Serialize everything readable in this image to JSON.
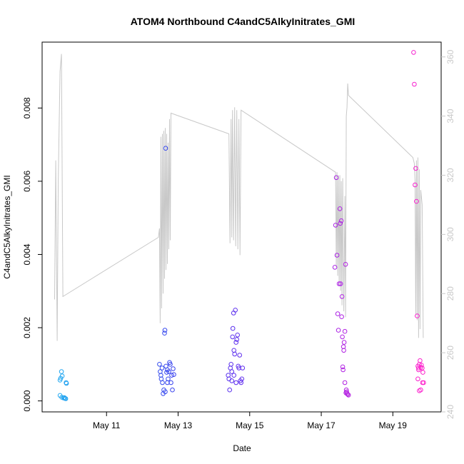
{
  "chart_data": {
    "type": "scatter",
    "title": "ATOM4 Northbound C4andC5AlkyInitrates_GMI",
    "xlabel": "Date",
    "ylabel": "C4andC5AlkyInitrates_GMI",
    "x_ticks": [
      "May 11",
      "May 13",
      "May 15",
      "May 17",
      "May 19"
    ],
    "x_tick_days": [
      11,
      13,
      15,
      17,
      19
    ],
    "xlim_days": [
      9.2,
      20.35
    ],
    "ylim": [
      -0.0003,
      0.0098
    ],
    "y_ticks": [
      0.0,
      0.002,
      0.004,
      0.006,
      0.008
    ],
    "y_tick_labels": [
      "0.000",
      "0.002",
      "0.004",
      "0.006",
      "0.008"
    ],
    "y2_ticks": [
      240,
      260,
      280,
      300,
      320,
      340,
      360
    ],
    "y2_lim": [
      240,
      365
    ],
    "y2_color": "#c8c8c8",
    "grid": false,
    "legend": "none",
    "color_gradient": [
      "#22a8f0",
      "#3a3aee",
      "#8822ee",
      "#ff22cc"
    ],
    "series": [
      {
        "points": [
          [
            9.7,
            0.00057
          ],
          [
            9.72,
            0.00062
          ],
          [
            9.74,
            0.0008
          ],
          [
            9.76,
            0.00068
          ],
          [
            9.87,
            0.0005
          ],
          [
            9.88,
            0.00048
          ],
          [
            9.7,
            0.00015
          ],
          [
            9.75,
            0.0001
          ],
          [
            9.8,
            8e-05
          ],
          [
            9.84,
            7e-05
          ],
          [
            9.86,
            6e-05
          ],
          [
            9.82,
            9e-05
          ],
          [
            12.48,
            0.001
          ],
          [
            12.5,
            0.0008
          ],
          [
            12.52,
            0.0007
          ],
          [
            12.53,
            0.0006
          ],
          [
            12.55,
            0.0009
          ],
          [
            12.56,
            0.0005
          ],
          [
            12.58,
            0.0002
          ],
          [
            12.6,
            0.0003
          ],
          [
            12.62,
            0.00185
          ],
          [
            12.63,
            0.00193
          ],
          [
            12.65,
            0.0069
          ],
          [
            12.66,
            0.00095
          ],
          [
            12.68,
            0.00078
          ],
          [
            12.7,
            0.00085
          ],
          [
            12.72,
            0.0006
          ],
          [
            12.74,
            0.0008
          ],
          [
            12.76,
            0.00105
          ],
          [
            12.78,
            0.001
          ],
          [
            12.8,
            0.0005
          ],
          [
            12.82,
            0.0007
          ],
          [
            12.84,
            0.0003
          ],
          [
            12.86,
            0.00088
          ],
          [
            12.88,
            0.00072
          ],
          [
            12.64,
            0.00025
          ],
          [
            12.7,
            0.0005
          ],
          [
            14.4,
            0.0007
          ],
          [
            14.42,
            0.0006
          ],
          [
            14.44,
            0.0003
          ],
          [
            14.46,
            0.0009
          ],
          [
            14.48,
            0.001
          ],
          [
            14.5,
            0.0008
          ],
          [
            14.52,
            0.00175
          ],
          [
            14.53,
            0.00198
          ],
          [
            14.55,
            0.0024
          ],
          [
            14.56,
            0.00138
          ],
          [
            14.58,
            0.00128
          ],
          [
            14.6,
            0.00248
          ],
          [
            14.62,
            0.0016
          ],
          [
            14.64,
            0.00168
          ],
          [
            14.66,
            0.0018
          ],
          [
            14.68,
            0.00095
          ],
          [
            14.7,
            0.0009
          ],
          [
            14.72,
            0.00125
          ],
          [
            14.74,
            0.00055
          ],
          [
            14.76,
            0.0005
          ],
          [
            14.78,
            0.0006
          ],
          [
            14.8,
            0.0009
          ],
          [
            14.5,
            0.00055
          ],
          [
            14.56,
            0.0007
          ],
          [
            14.62,
            0.0005
          ],
          [
            17.38,
            0.00365
          ],
          [
            17.4,
            0.0048
          ],
          [
            17.42,
            0.0061
          ],
          [
            17.44,
            0.00398
          ],
          [
            17.46,
            0.00238
          ],
          [
            17.48,
            0.00193
          ],
          [
            17.5,
            0.0032
          ],
          [
            17.52,
            0.00525
          ],
          [
            17.53,
            0.00485
          ],
          [
            17.54,
            0.0032
          ],
          [
            17.56,
            0.00492
          ],
          [
            17.57,
            0.0023
          ],
          [
            17.58,
            0.00285
          ],
          [
            17.59,
            0.00175
          ],
          [
            17.6,
            0.00093
          ],
          [
            17.61,
            0.00085
          ],
          [
            17.62,
            0.00148
          ],
          [
            17.63,
            0.00138
          ],
          [
            17.64,
            0.0016
          ],
          [
            17.66,
            0.0019
          ],
          [
            17.68,
            0.00373
          ],
          [
            17.7,
            0.0003
          ],
          [
            17.72,
            0.0002
          ],
          [
            17.74,
            0.00018
          ],
          [
            17.76,
            0.00016
          ],
          [
            17.66,
            0.0005
          ],
          [
            17.69,
            0.00022
          ],
          [
            17.71,
            0.00025
          ],
          [
            19.58,
            0.00952
          ],
          [
            19.6,
            0.00865
          ],
          [
            19.62,
            0.0059
          ],
          [
            19.64,
            0.00635
          ],
          [
            19.66,
            0.00545
          ],
          [
            19.68,
            0.00232
          ],
          [
            19.7,
            0.00095
          ],
          [
            19.72,
            0.0009
          ],
          [
            19.74,
            0.001
          ],
          [
            19.76,
            0.0011
          ],
          [
            19.78,
            0.00092
          ],
          [
            19.8,
            0.00098
          ],
          [
            19.82,
            0.0009
          ],
          [
            19.84,
            0.00078
          ],
          [
            19.86,
            0.0005
          ],
          [
            19.7,
            0.0006
          ],
          [
            19.74,
            0.00028
          ],
          [
            19.78,
            0.0003
          ],
          [
            19.83,
            0.0005
          ],
          [
            19.72,
            0.00085
          ]
        ]
      },
      {
        "y_axis": "right",
        "color": "#c8c8c8",
        "type": "line",
        "points": [
          [
            9.55,
            278
          ],
          [
            9.58,
            325
          ],
          [
            9.62,
            264
          ],
          [
            9.65,
            318
          ],
          [
            9.7,
            355
          ],
          [
            9.74,
            361
          ],
          [
            9.78,
            279
          ],
          [
            12.45,
            299
          ],
          [
            12.48,
            302
          ],
          [
            12.5,
            270
          ],
          [
            12.52,
            333
          ],
          [
            12.54,
            275
          ],
          [
            12.56,
            334
          ],
          [
            12.58,
            280
          ],
          [
            12.6,
            335
          ],
          [
            12.62,
            285
          ],
          [
            12.64,
            336
          ],
          [
            12.66,
            288
          ],
          [
            12.68,
            334
          ],
          [
            12.7,
            290
          ],
          [
            12.72,
            331
          ],
          [
            12.74,
            295
          ],
          [
            12.76,
            339
          ],
          [
            12.78,
            298
          ],
          [
            12.8,
            341
          ],
          [
            14.42,
            334
          ],
          [
            14.45,
            297
          ],
          [
            14.48,
            339
          ],
          [
            14.5,
            299
          ],
          [
            14.52,
            342
          ],
          [
            14.55,
            298
          ],
          [
            14.58,
            343
          ],
          [
            14.61,
            296
          ],
          [
            14.64,
            342
          ],
          [
            14.67,
            295
          ],
          [
            14.7,
            339
          ],
          [
            14.73,
            293
          ],
          [
            14.76,
            342
          ],
          [
            17.4,
            321
          ],
          [
            17.42,
            289
          ],
          [
            17.44,
            321
          ],
          [
            17.46,
            286
          ],
          [
            17.48,
            320
          ],
          [
            17.5,
            283
          ],
          [
            17.52,
            320
          ],
          [
            17.54,
            281
          ],
          [
            17.56,
            318
          ],
          [
            17.58,
            276
          ],
          [
            17.6,
            319
          ],
          [
            17.63,
            274
          ],
          [
            17.66,
            313
          ],
          [
            17.68,
            272
          ],
          [
            17.7,
            340
          ],
          [
            17.72,
            343
          ],
          [
            17.74,
            351
          ],
          [
            17.76,
            347
          ],
          [
            19.56,
            326
          ],
          [
            19.6,
            324
          ],
          [
            19.62,
            318
          ],
          [
            19.64,
            273
          ],
          [
            19.66,
            325
          ],
          [
            19.68,
            271
          ],
          [
            19.7,
            326
          ],
          [
            19.72,
            265
          ],
          [
            19.74,
            322
          ],
          [
            19.76,
            268
          ],
          [
            19.78,
            315
          ],
          [
            19.82,
            310
          ],
          [
            19.85,
            265
          ]
        ]
      }
    ]
  }
}
